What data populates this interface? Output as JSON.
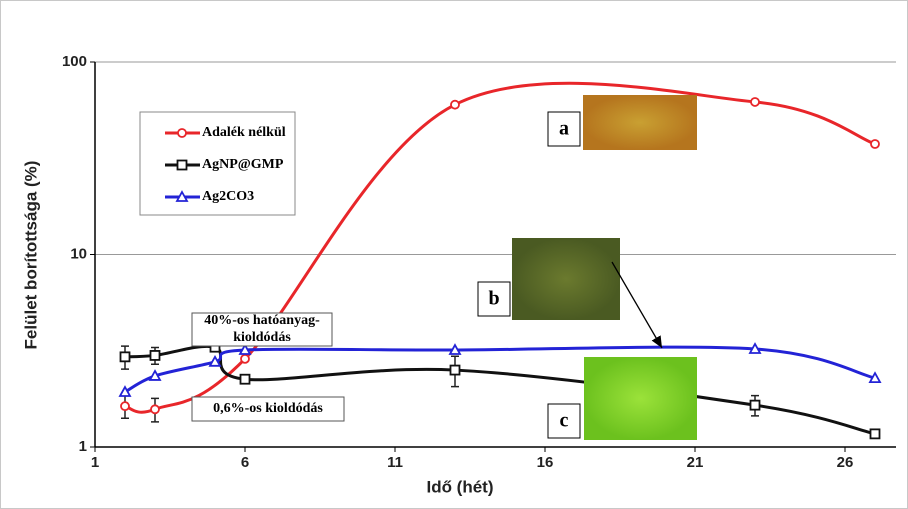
{
  "chart_data": {
    "type": "line",
    "x_label": "Idő (hét)",
    "y_label": "Felület borítottsága (%)",
    "xlim": [
      1,
      27.7
    ],
    "ylim": [
      1,
      100
    ],
    "xticks": [
      1,
      6,
      11,
      16,
      21,
      26
    ],
    "yticks": [
      1,
      10,
      100
    ],
    "log_y": true,
    "grid": true,
    "legend": "upper left",
    "series": [
      {
        "name": "Adalék nélkül",
        "color": "#e8262a",
        "marker": "circle",
        "x": [
          2,
          3,
          6,
          13,
          23,
          27
        ],
        "values": [
          1.63,
          1.57,
          2.87,
          60,
          62,
          37.5
        ],
        "errors": [
          0.22,
          0.22,
          null,
          null,
          null,
          null
        ]
      },
      {
        "name": "AgNP@GMP",
        "color": "#111111",
        "marker": "square",
        "x": [
          2,
          3,
          5,
          6,
          13,
          23,
          27
        ],
        "values": [
          2.94,
          2.99,
          3.3,
          2.25,
          2.51,
          1.65,
          1.17
        ],
        "errors": [
          0.4,
          0.3,
          null,
          null,
          0.45,
          0.2,
          null
        ]
      },
      {
        "name": "Ag2CO3",
        "color": "#2323d6",
        "marker": "triangle",
        "x": [
          2,
          3,
          5,
          6,
          13,
          23,
          27
        ],
        "values": [
          1.93,
          2.34,
          2.77,
          3.19,
          3.19,
          3.23,
          2.28
        ],
        "errors": [
          null,
          null,
          null,
          null,
          null,
          null,
          null
        ]
      }
    ],
    "annotations": [
      [
        "40%-os hatóanyag-",
        "kioldódás"
      ],
      [
        "0,6%-os kioldódás"
      ]
    ],
    "panel_labels": [
      "a",
      "b",
      "c"
    ]
  }
}
